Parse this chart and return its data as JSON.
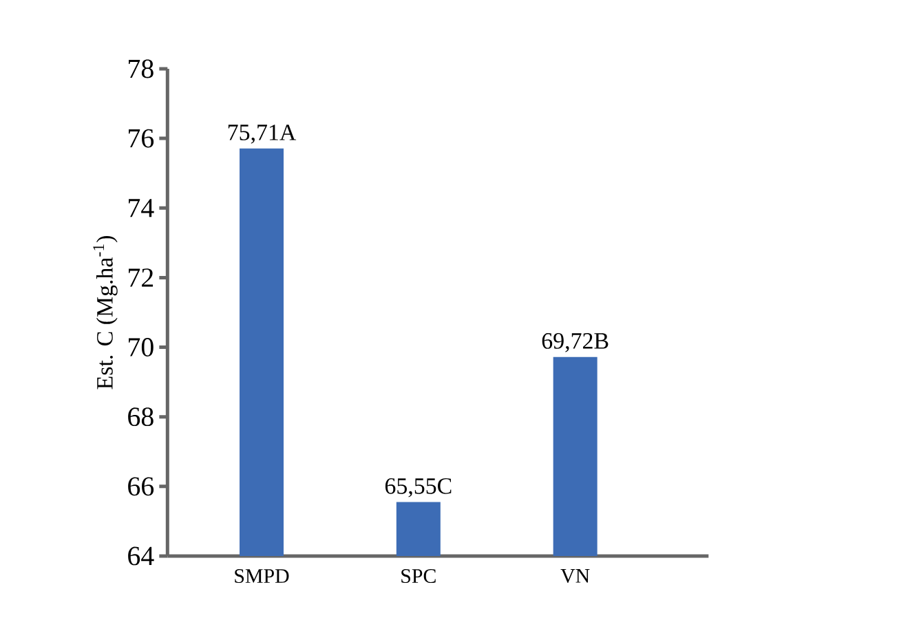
{
  "chart_data": {
    "type": "bar",
    "ylabel": "Est. C (Mg.ha$^{-1}$)",
    "categories": [
      "SMPD",
      "SPC",
      "VN"
    ],
    "values": [
      75.71,
      65.55,
      69.72
    ],
    "value_labels": [
      "75,71A",
      "65,55C",
      "69,72B"
    ],
    "color": "#3d6cb5",
    "ylim": [
      64,
      78
    ],
    "yticks": [
      64,
      66,
      68,
      70,
      72,
      74,
      76,
      78
    ],
    "grid": false
  }
}
